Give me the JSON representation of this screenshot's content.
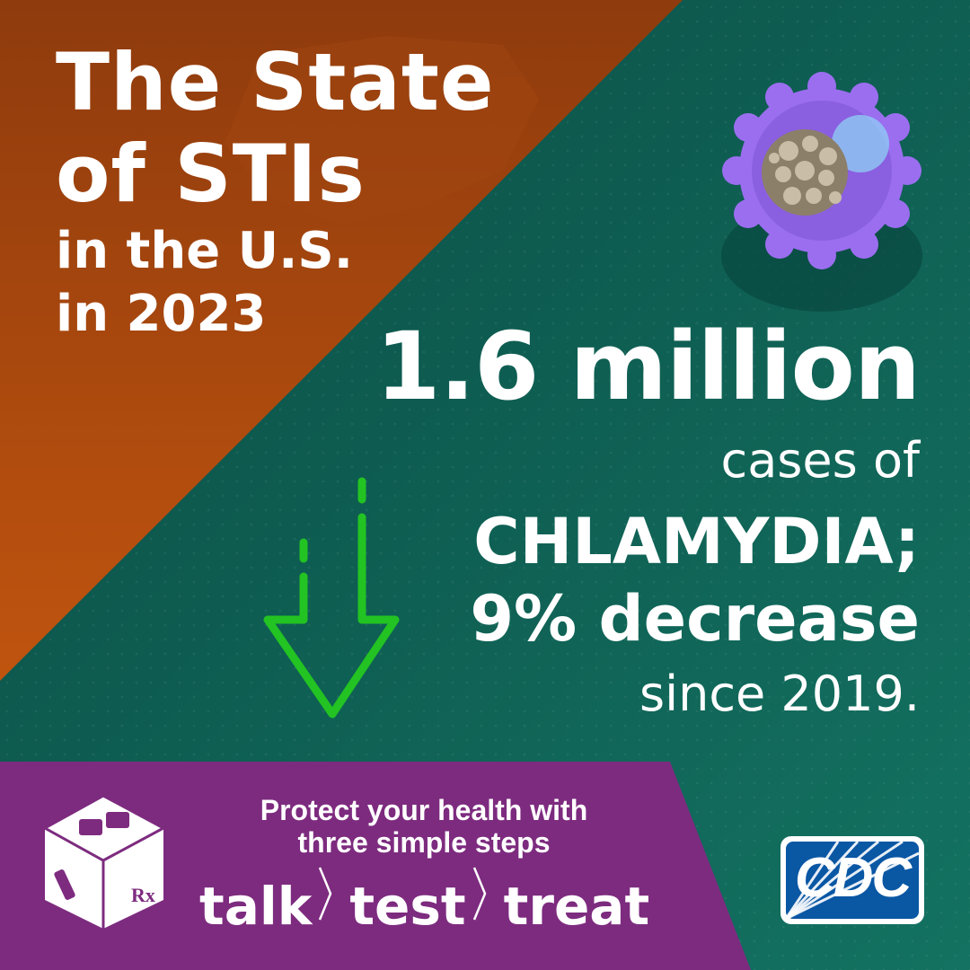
{
  "title": {
    "line1": "The State",
    "line2": "of STIs",
    "line3": "in the U.S.",
    "line4": "in 2023"
  },
  "stat": {
    "number": "1.6 million",
    "cases_of": "cases of",
    "disease": "CHLAMYDIA;",
    "change": "9% decrease",
    "since": "since 2019."
  },
  "banner": {
    "line1": "Protect your health with",
    "line2": "three simple steps",
    "steps": [
      "talk",
      "test",
      "treat"
    ]
  },
  "logo": {
    "text": "CDC"
  },
  "icons": {
    "germ": "chlamydia-germ-icon",
    "arrow": "down-arrow-icon",
    "cube": "talk-test-treat-cube-icon"
  },
  "colors": {
    "orange": "#b24e0e",
    "teal": "#0f5a4f",
    "purple": "#7d2b7f",
    "arrow_green": "#22c322",
    "germ_purple": "#9b6ef0",
    "cdc_blue": "#0a57a4"
  }
}
